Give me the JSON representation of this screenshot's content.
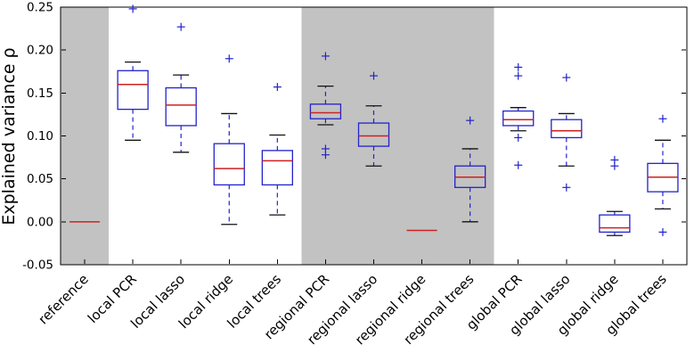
{
  "chart_data": {
    "type": "boxplot",
    "title": "",
    "xlabel": "",
    "ylabel": "Explained variance ρ",
    "ylim": [
      -0.05,
      0.25
    ],
    "yticks": [
      -0.05,
      0.0,
      0.05,
      0.1,
      0.15,
      0.2,
      0.25
    ],
    "grid": false,
    "legend": "none",
    "categories": [
      "reference",
      "local PCR",
      "local lasso",
      "local ridge",
      "local trees",
      "regional PCR",
      "regional lasso",
      "regional ridge",
      "regional trees",
      "global PCR",
      "global lasso",
      "global ridge",
      "global trees"
    ],
    "shaded_groups": [
      {
        "start": 0,
        "end": 1
      },
      {
        "start": 5,
        "end": 9
      }
    ],
    "shade_color": "#c2c2c2",
    "box_color": "#2222cc",
    "median_color": "#cc2222",
    "whisker_color": "#2222cc",
    "cap_color": "#111111",
    "flier_color": "#2222cc",
    "boxes": [
      {
        "label": "reference",
        "degenerate": true,
        "median": 0.0,
        "q1": 0.0,
        "q3": 0.0,
        "whislo": 0.0,
        "whishi": 0.0,
        "fliers": []
      },
      {
        "label": "local PCR",
        "degenerate": false,
        "median": 0.16,
        "q1": 0.131,
        "q3": 0.176,
        "whislo": 0.095,
        "whishi": 0.186,
        "fliers": [
          0.248
        ]
      },
      {
        "label": "local lasso",
        "degenerate": false,
        "median": 0.136,
        "q1": 0.112,
        "q3": 0.156,
        "whislo": 0.081,
        "whishi": 0.171,
        "fliers": [
          0.227
        ]
      },
      {
        "label": "local ridge",
        "degenerate": false,
        "median": 0.062,
        "q1": 0.043,
        "q3": 0.091,
        "whislo": -0.003,
        "whishi": 0.126,
        "fliers": [
          0.19
        ]
      },
      {
        "label": "local trees",
        "degenerate": false,
        "median": 0.071,
        "q1": 0.043,
        "q3": 0.083,
        "whislo": 0.008,
        "whishi": 0.101,
        "fliers": [
          0.157
        ]
      },
      {
        "label": "regional PCR",
        "degenerate": false,
        "median": 0.127,
        "q1": 0.12,
        "q3": 0.137,
        "whislo": 0.113,
        "whishi": 0.158,
        "fliers": [
          0.193,
          0.085,
          0.078
        ]
      },
      {
        "label": "regional lasso",
        "degenerate": false,
        "median": 0.1,
        "q1": 0.088,
        "q3": 0.115,
        "whislo": 0.065,
        "whishi": 0.135,
        "fliers": [
          0.17
        ]
      },
      {
        "label": "regional ridge",
        "degenerate": true,
        "median": -0.01,
        "q1": -0.01,
        "q3": -0.01,
        "whislo": -0.01,
        "whishi": -0.01,
        "fliers": []
      },
      {
        "label": "regional trees",
        "degenerate": false,
        "median": 0.052,
        "q1": 0.04,
        "q3": 0.065,
        "whislo": 0.0,
        "whishi": 0.085,
        "fliers": [
          0.118
        ]
      },
      {
        "label": "global PCR",
        "degenerate": false,
        "median": 0.119,
        "q1": 0.112,
        "q3": 0.129,
        "whislo": 0.106,
        "whishi": 0.133,
        "fliers": [
          0.18,
          0.17,
          0.098,
          0.066
        ]
      },
      {
        "label": "global lasso",
        "degenerate": false,
        "median": 0.106,
        "q1": 0.098,
        "q3": 0.119,
        "whislo": 0.065,
        "whishi": 0.126,
        "fliers": [
          0.168,
          0.04
        ]
      },
      {
        "label": "global ridge",
        "degenerate": false,
        "median": -0.007,
        "q1": -0.012,
        "q3": 0.008,
        "whislo": -0.016,
        "whishi": 0.012,
        "fliers": [
          0.072,
          0.065
        ]
      },
      {
        "label": "global trees",
        "degenerate": false,
        "median": 0.052,
        "q1": 0.035,
        "q3": 0.068,
        "whislo": 0.015,
        "whishi": 0.095,
        "fliers": [
          0.12,
          -0.012
        ]
      }
    ]
  }
}
